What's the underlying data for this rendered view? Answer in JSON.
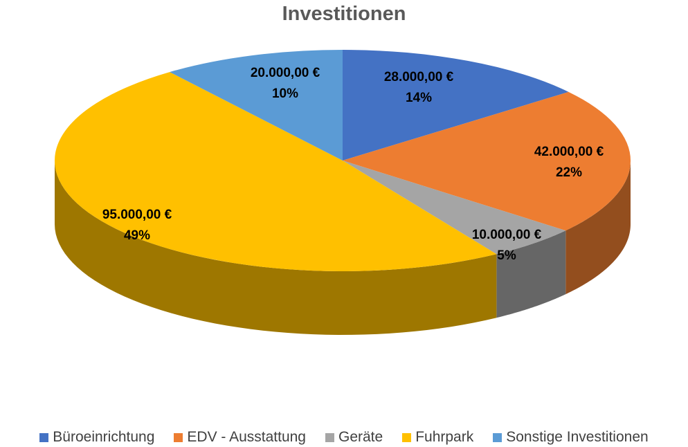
{
  "chart_data": {
    "type": "pie",
    "title": "Investitionen",
    "categories": [
      "Büroeinrichtung",
      "EDV - Ausstattung",
      "Geräte",
      "Fuhrpark",
      "Sonstige Investitionen"
    ],
    "values": [
      28000,
      42000,
      10000,
      95000,
      20000
    ],
    "value_labels": [
      "28.000,00 €",
      "42.000,00 €",
      "10.000,00 €",
      "95.000,00 €",
      "20.000,00 €"
    ],
    "percent_labels": [
      "14%",
      "22%",
      "5%",
      "49%",
      "10%"
    ],
    "colors": [
      "#4472C4",
      "#ED7D31",
      "#A5A5A5",
      "#FFC000",
      "#5B9BD5"
    ],
    "legend_position": "bottom",
    "style": "3d"
  }
}
